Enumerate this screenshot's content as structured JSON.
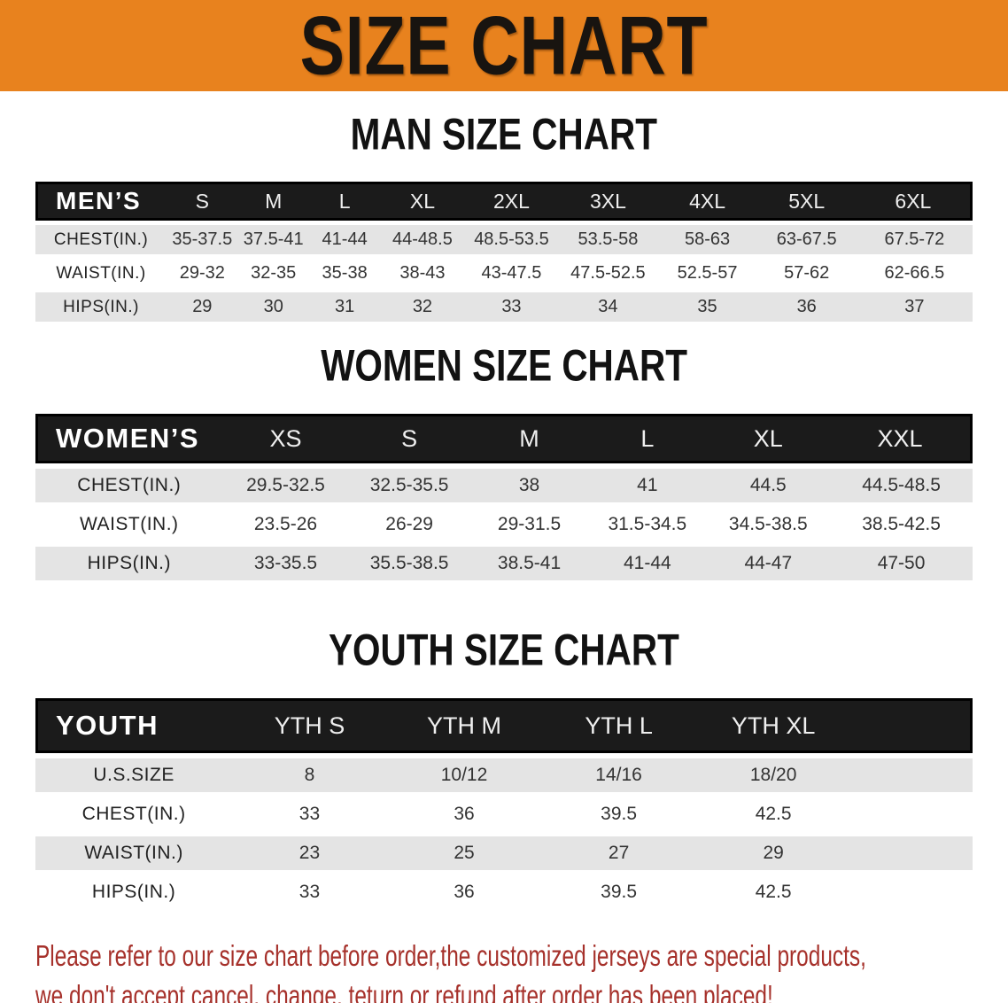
{
  "banner": {
    "title": "SIZE CHART"
  },
  "colors": {
    "banner_bg": "#E8821E",
    "header_bar_bg": "#1B1B1B",
    "row_alt_bg": "#E4E4E4",
    "footer_text": "#A6312B"
  },
  "sections": [
    {
      "key": "mens",
      "heading": "MAN SIZE CHART",
      "header_label": "MEN’S",
      "columns": [
        "S",
        "M",
        "L",
        "XL",
        "2XL",
        "3XL",
        "4XL",
        "5XL",
        "6XL"
      ],
      "rows": [
        {
          "label": "CHEST(IN.)",
          "values": [
            "35-37.5",
            "37.5-41",
            "41-44",
            "44-48.5",
            "48.5-53.5",
            "53.5-58",
            "58-63",
            "63-67.5",
            "67.5-72"
          ]
        },
        {
          "label": "WAIST(IN.)",
          "values": [
            "29-32",
            "32-35",
            "35-38",
            "38-43",
            "43-47.5",
            "47.5-52.5",
            "52.5-57",
            "57-62",
            "62-66.5"
          ]
        },
        {
          "label": "HIPS(IN.)",
          "values": [
            "29",
            "30",
            "31",
            "32",
            "33",
            "34",
            "35",
            "36",
            "37"
          ]
        }
      ]
    },
    {
      "key": "womens",
      "heading": "WOMEN SIZE CHART",
      "header_label": "WOMEN’S",
      "columns": [
        "XS",
        "S",
        "M",
        "L",
        "XL",
        "XXL"
      ],
      "rows": [
        {
          "label": "CHEST(IN.)",
          "values": [
            "29.5-32.5",
            "32.5-35.5",
            "38",
            "41",
            "44.5",
            "44.5-48.5"
          ]
        },
        {
          "label": "WAIST(IN.)",
          "values": [
            "23.5-26",
            "26-29",
            "29-31.5",
            "31.5-34.5",
            "34.5-38.5",
            "38.5-42.5"
          ]
        },
        {
          "label": "HIPS(IN.)",
          "values": [
            "33-35.5",
            "35.5-38.5",
            "38.5-41",
            "41-44",
            "44-47",
            "47-50"
          ]
        }
      ]
    },
    {
      "key": "youth",
      "heading": "YOUTH SIZE CHART",
      "header_label": "YOUTH",
      "columns": [
        "YTH S",
        "YTH M",
        "YTH L",
        "YTH XL"
      ],
      "rows": [
        {
          "label": "U.S.SIZE",
          "values": [
            "8",
            "10/12",
            "14/16",
            "18/20"
          ]
        },
        {
          "label": "CHEST(IN.)",
          "values": [
            "33",
            "36",
            "39.5",
            "42.5"
          ]
        },
        {
          "label": "WAIST(IN.)",
          "values": [
            "23",
            "25",
            "27",
            "29"
          ]
        },
        {
          "label": "HIPS(IN.)",
          "values": [
            "33",
            "36",
            "39.5",
            "42.5"
          ]
        }
      ]
    }
  ],
  "footer": {
    "line1": "Please refer to our size chart before order,the customized jerseys are special products,",
    "line2": "we don't accept cancel, change, teturn or refund after order has been placed!"
  }
}
